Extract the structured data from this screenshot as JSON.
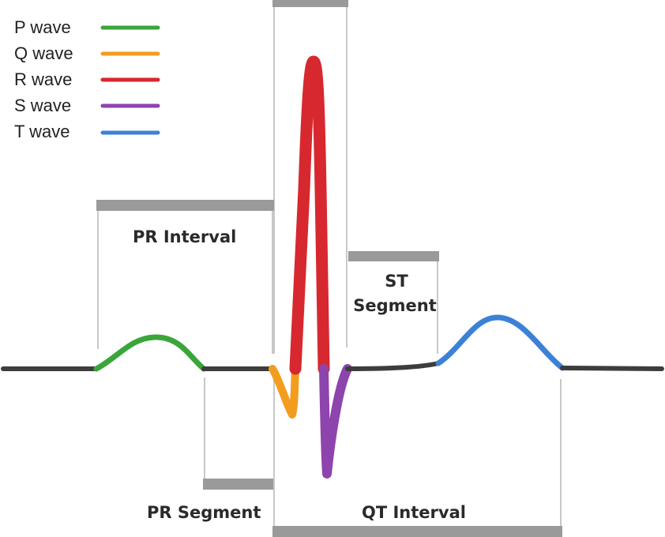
{
  "legend": {
    "items": [
      {
        "label": "P wave",
        "color": "#3aa63a"
      },
      {
        "label": "Q wave",
        "color": "#f39c1e"
      },
      {
        "label": "R wave",
        "color": "#d7282f"
      },
      {
        "label": "S wave",
        "color": "#8e44ad"
      },
      {
        "label": "T wave",
        "color": "#3b82d6"
      }
    ]
  },
  "regions": {
    "pr_interval": "PR Interval",
    "pr_segment": "PR Segment",
    "st_segment_line1": "ST",
    "st_segment_line2": "Segment",
    "qt_interval": "QT Interval"
  },
  "colors": {
    "baseline": "#3d3d3d",
    "bracket_bar": "#9a9a9a",
    "bracket_line": "#c8c8c8"
  }
}
